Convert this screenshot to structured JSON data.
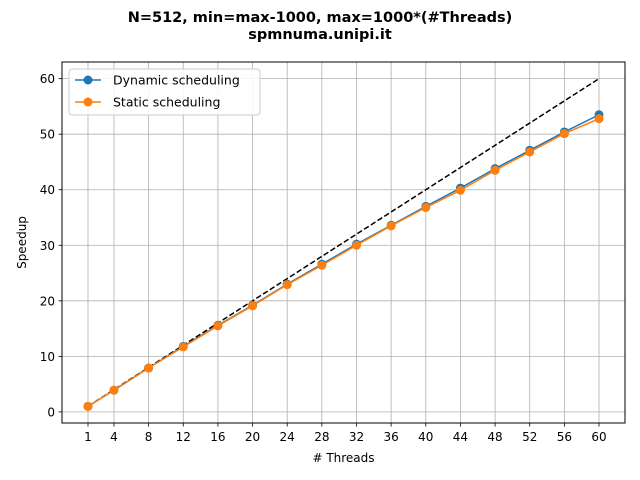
{
  "chart_data": {
    "type": "line",
    "title": "N=512, min=max-1000, max=1000*(#Threads)",
    "subtitle": "spmnuma.unipi.it",
    "xlabel": "# Threads",
    "ylabel": "Speedup",
    "xlim": [
      -2,
      63
    ],
    "ylim": [
      -2,
      63
    ],
    "xticks": [
      1,
      4,
      8,
      12,
      16,
      20,
      24,
      28,
      32,
      36,
      40,
      44,
      48,
      52,
      56,
      60
    ],
    "yticks": [
      0,
      10,
      20,
      30,
      40,
      50,
      60
    ],
    "grid": true,
    "legend_position": "top-left",
    "x": [
      1,
      4,
      8,
      12,
      16,
      20,
      24,
      28,
      32,
      36,
      40,
      44,
      48,
      52,
      56,
      60
    ],
    "series": [
      {
        "name": "Dynamic scheduling",
        "color": "#1f77b4",
        "marker": "circle",
        "values": [
          1.0,
          3.9,
          7.9,
          11.8,
          15.6,
          19.2,
          23.0,
          26.6,
          30.2,
          33.6,
          37.0,
          40.3,
          43.8,
          47.1,
          50.4,
          53.5
        ]
      },
      {
        "name": "Static scheduling",
        "color": "#ff7f0e",
        "marker": "circle",
        "values": [
          1.0,
          3.9,
          7.9,
          11.7,
          15.5,
          19.1,
          22.9,
          26.4,
          30.0,
          33.5,
          36.8,
          39.9,
          43.5,
          46.8,
          50.1,
          52.8
        ]
      }
    ],
    "reference_line": {
      "color": "#000000",
      "style": "dashed",
      "x": [
        1,
        60
      ],
      "values": [
        1,
        60
      ]
    }
  }
}
